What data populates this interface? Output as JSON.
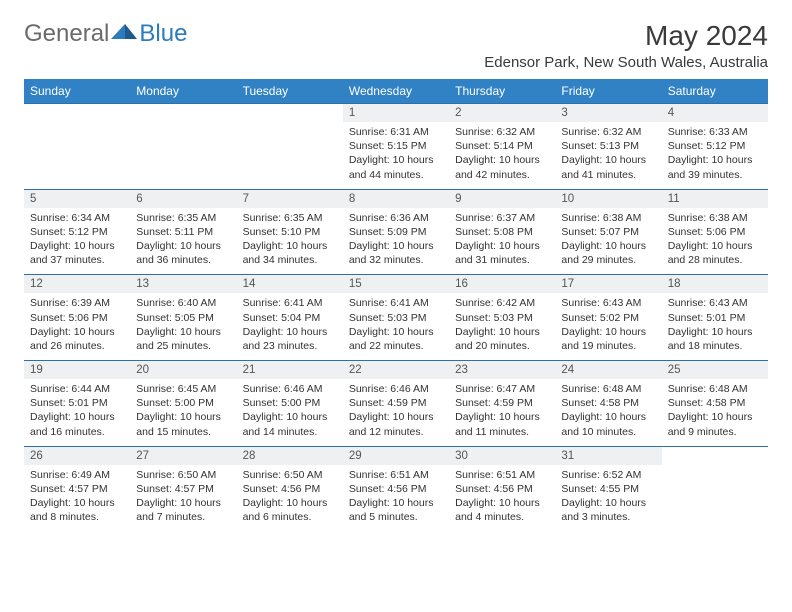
{
  "brand": {
    "part1": "General",
    "part2": "Blue"
  },
  "title": "May 2024",
  "location": "Edensor Park, New South Wales, Australia",
  "colors": {
    "header_bg": "#3182c4",
    "header_text": "#ffffff",
    "date_bg": "#eef0f2",
    "border": "#2d6fa8",
    "body_text": "#333333",
    "brand_blue": "#2b7bbd"
  },
  "day_names": [
    "Sunday",
    "Monday",
    "Tuesday",
    "Wednesday",
    "Thursday",
    "Friday",
    "Saturday"
  ],
  "weeks": [
    {
      "days": [
        {
          "date": "",
          "lines": []
        },
        {
          "date": "",
          "lines": []
        },
        {
          "date": "",
          "lines": []
        },
        {
          "date": "1",
          "lines": [
            "Sunrise: 6:31 AM",
            "Sunset: 5:15 PM",
            "Daylight: 10 hours and 44 minutes."
          ]
        },
        {
          "date": "2",
          "lines": [
            "Sunrise: 6:32 AM",
            "Sunset: 5:14 PM",
            "Daylight: 10 hours and 42 minutes."
          ]
        },
        {
          "date": "3",
          "lines": [
            "Sunrise: 6:32 AM",
            "Sunset: 5:13 PM",
            "Daylight: 10 hours and 41 minutes."
          ]
        },
        {
          "date": "4",
          "lines": [
            "Sunrise: 6:33 AM",
            "Sunset: 5:12 PM",
            "Daylight: 10 hours and 39 minutes."
          ]
        }
      ]
    },
    {
      "days": [
        {
          "date": "5",
          "lines": [
            "Sunrise: 6:34 AM",
            "Sunset: 5:12 PM",
            "Daylight: 10 hours and 37 minutes."
          ]
        },
        {
          "date": "6",
          "lines": [
            "Sunrise: 6:35 AM",
            "Sunset: 5:11 PM",
            "Daylight: 10 hours and 36 minutes."
          ]
        },
        {
          "date": "7",
          "lines": [
            "Sunrise: 6:35 AM",
            "Sunset: 5:10 PM",
            "Daylight: 10 hours and 34 minutes."
          ]
        },
        {
          "date": "8",
          "lines": [
            "Sunrise: 6:36 AM",
            "Sunset: 5:09 PM",
            "Daylight: 10 hours and 32 minutes."
          ]
        },
        {
          "date": "9",
          "lines": [
            "Sunrise: 6:37 AM",
            "Sunset: 5:08 PM",
            "Daylight: 10 hours and 31 minutes."
          ]
        },
        {
          "date": "10",
          "lines": [
            "Sunrise: 6:38 AM",
            "Sunset: 5:07 PM",
            "Daylight: 10 hours and 29 minutes."
          ]
        },
        {
          "date": "11",
          "lines": [
            "Sunrise: 6:38 AM",
            "Sunset: 5:06 PM",
            "Daylight: 10 hours and 28 minutes."
          ]
        }
      ]
    },
    {
      "days": [
        {
          "date": "12",
          "lines": [
            "Sunrise: 6:39 AM",
            "Sunset: 5:06 PM",
            "Daylight: 10 hours and 26 minutes."
          ]
        },
        {
          "date": "13",
          "lines": [
            "Sunrise: 6:40 AM",
            "Sunset: 5:05 PM",
            "Daylight: 10 hours and 25 minutes."
          ]
        },
        {
          "date": "14",
          "lines": [
            "Sunrise: 6:41 AM",
            "Sunset: 5:04 PM",
            "Daylight: 10 hours and 23 minutes."
          ]
        },
        {
          "date": "15",
          "lines": [
            "Sunrise: 6:41 AM",
            "Sunset: 5:03 PM",
            "Daylight: 10 hours and 22 minutes."
          ]
        },
        {
          "date": "16",
          "lines": [
            "Sunrise: 6:42 AM",
            "Sunset: 5:03 PM",
            "Daylight: 10 hours and 20 minutes."
          ]
        },
        {
          "date": "17",
          "lines": [
            "Sunrise: 6:43 AM",
            "Sunset: 5:02 PM",
            "Daylight: 10 hours and 19 minutes."
          ]
        },
        {
          "date": "18",
          "lines": [
            "Sunrise: 6:43 AM",
            "Sunset: 5:01 PM",
            "Daylight: 10 hours and 18 minutes."
          ]
        }
      ]
    },
    {
      "days": [
        {
          "date": "19",
          "lines": [
            "Sunrise: 6:44 AM",
            "Sunset: 5:01 PM",
            "Daylight: 10 hours and 16 minutes."
          ]
        },
        {
          "date": "20",
          "lines": [
            "Sunrise: 6:45 AM",
            "Sunset: 5:00 PM",
            "Daylight: 10 hours and 15 minutes."
          ]
        },
        {
          "date": "21",
          "lines": [
            "Sunrise: 6:46 AM",
            "Sunset: 5:00 PM",
            "Daylight: 10 hours and 14 minutes."
          ]
        },
        {
          "date": "22",
          "lines": [
            "Sunrise: 6:46 AM",
            "Sunset: 4:59 PM",
            "Daylight: 10 hours and 12 minutes."
          ]
        },
        {
          "date": "23",
          "lines": [
            "Sunrise: 6:47 AM",
            "Sunset: 4:59 PM",
            "Daylight: 10 hours and 11 minutes."
          ]
        },
        {
          "date": "24",
          "lines": [
            "Sunrise: 6:48 AM",
            "Sunset: 4:58 PM",
            "Daylight: 10 hours and 10 minutes."
          ]
        },
        {
          "date": "25",
          "lines": [
            "Sunrise: 6:48 AM",
            "Sunset: 4:58 PM",
            "Daylight: 10 hours and 9 minutes."
          ]
        }
      ]
    },
    {
      "days": [
        {
          "date": "26",
          "lines": [
            "Sunrise: 6:49 AM",
            "Sunset: 4:57 PM",
            "Daylight: 10 hours and 8 minutes."
          ]
        },
        {
          "date": "27",
          "lines": [
            "Sunrise: 6:50 AM",
            "Sunset: 4:57 PM",
            "Daylight: 10 hours and 7 minutes."
          ]
        },
        {
          "date": "28",
          "lines": [
            "Sunrise: 6:50 AM",
            "Sunset: 4:56 PM",
            "Daylight: 10 hours and 6 minutes."
          ]
        },
        {
          "date": "29",
          "lines": [
            "Sunrise: 6:51 AM",
            "Sunset: 4:56 PM",
            "Daylight: 10 hours and 5 minutes."
          ]
        },
        {
          "date": "30",
          "lines": [
            "Sunrise: 6:51 AM",
            "Sunset: 4:56 PM",
            "Daylight: 10 hours and 4 minutes."
          ]
        },
        {
          "date": "31",
          "lines": [
            "Sunrise: 6:52 AM",
            "Sunset: 4:55 PM",
            "Daylight: 10 hours and 3 minutes."
          ]
        },
        {
          "date": "",
          "lines": []
        }
      ]
    }
  ]
}
